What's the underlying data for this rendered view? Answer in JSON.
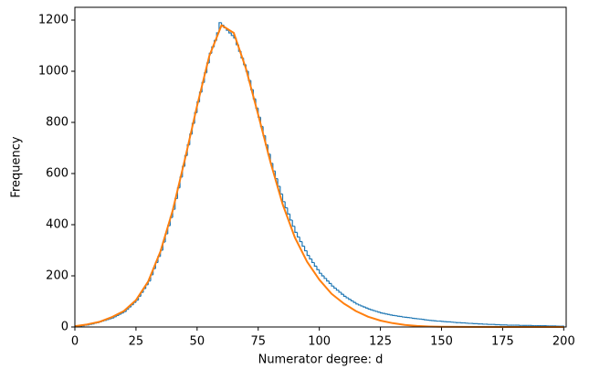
{
  "chart_data": {
    "type": "histogram",
    "xlabel": "Numerator degree: d",
    "ylabel": "Frequency",
    "xlim": [
      0,
      201
    ],
    "ylim": [
      0,
      1250
    ],
    "xticks": [
      0,
      25,
      50,
      75,
      100,
      125,
      150,
      175,
      200
    ],
    "yticks": [
      0,
      200,
      400,
      600,
      800,
      1000,
      1200
    ],
    "color": "#1f77b4",
    "bins": [
      0,
      1,
      2,
      3,
      4,
      5,
      6,
      7,
      8,
      9,
      10,
      11,
      12,
      13,
      14,
      15,
      16,
      17,
      18,
      19,
      20,
      21,
      22,
      23,
      24,
      25,
      26,
      27,
      28,
      29,
      30,
      31,
      32,
      33,
      34,
      35,
      36,
      37,
      38,
      39,
      40,
      41,
      42,
      43,
      44,
      45,
      46,
      47,
      48,
      49,
      50,
      51,
      52,
      53,
      54,
      55,
      56,
      57,
      58,
      59,
      60,
      61,
      62,
      63,
      64,
      65,
      66,
      67,
      68,
      69,
      70,
      71,
      72,
      73,
      74,
      75,
      76,
      77,
      78,
      79,
      80,
      81,
      82,
      83,
      84,
      85,
      86,
      87,
      88,
      89,
      90,
      91,
      92,
      93,
      94,
      95,
      96,
      97,
      98,
      99,
      100,
      101,
      102,
      103,
      104,
      105,
      106,
      107,
      108,
      109,
      110,
      111,
      112,
      113,
      114,
      115,
      116,
      117,
      118,
      119,
      120,
      121,
      122,
      123,
      124,
      125,
      126,
      127,
      128,
      129,
      130,
      131,
      132,
      133,
      134,
      135,
      136,
      137,
      138,
      139,
      140,
      141,
      142,
      143,
      144,
      145,
      146,
      147,
      148,
      149,
      150,
      151,
      152,
      153,
      154,
      155,
      156,
      157,
      158,
      159,
      160,
      161,
      162,
      163,
      164,
      165,
      166,
      167,
      168,
      169,
      170,
      171,
      172,
      173,
      174,
      175,
      176,
      177,
      178,
      179,
      180,
      181,
      182,
      183,
      184,
      185,
      186,
      187,
      188,
      189,
      190,
      191,
      192,
      193,
      194,
      195,
      196,
      197,
      198,
      199,
      200
    ],
    "values": [
      2,
      3,
      4,
      5,
      7,
      8,
      10,
      12,
      15,
      17,
      20,
      23,
      26,
      29,
      32,
      35,
      40,
      45,
      50,
      55,
      60,
      69,
      78,
      87,
      96,
      105,
      120,
      135,
      150,
      165,
      180,
      204,
      228,
      252,
      276,
      300,
      332,
      364,
      396,
      428,
      460,
      502,
      544,
      586,
      628,
      670,
      712,
      754,
      796,
      838,
      880,
      918,
      956,
      994,
      1032,
      1070,
      1095,
      1120,
      1150,
      1190,
      1180,
      1170,
      1160,
      1150,
      1140,
      1130,
      1104,
      1078,
      1052,
      1026,
      1000,
      964,
      928,
      892,
      856,
      820,
      784,
      748,
      712,
      676,
      640,
      610,
      580,
      550,
      520,
      490,
      466,
      442,
      418,
      394,
      370,
      352,
      334,
      316,
      298,
      280,
      266,
      252,
      238,
      224,
      210,
      200,
      190,
      180,
      170,
      160,
      152,
      144,
      136,
      128,
      120,
      114,
      108,
      102,
      96,
      90,
      86,
      82,
      78,
      74,
      70,
      67,
      64,
      61,
      58,
      55,
      53,
      51,
      49,
      47,
      45,
      44,
      42,
      41,
      39,
      38,
      37,
      36,
      34,
      33,
      32,
      31,
      30,
      28,
      27,
      26,
      25,
      24,
      23,
      23,
      22,
      21,
      20,
      20,
      19,
      18,
      17,
      17,
      16,
      16,
      15,
      14,
      14,
      13,
      13,
      12,
      12,
      11,
      11,
      10,
      10,
      10,
      9,
      9,
      8,
      8,
      8,
      7,
      7,
      7,
      7,
      7,
      6,
      6,
      6,
      6,
      6,
      5,
      5,
      5,
      5,
      5,
      5,
      4,
      4,
      4,
      4,
      3,
      3,
      3
    ],
    "curve": {
      "color": "#ff7f0e",
      "x": [
        0,
        5,
        10,
        15,
        20,
        25,
        30,
        35,
        40,
        45,
        50,
        55,
        60,
        65,
        70,
        75,
        80,
        85,
        90,
        95,
        100,
        105,
        110,
        115,
        120,
        125,
        130,
        135,
        140,
        145,
        150,
        175,
        200
      ],
      "values": [
        3,
        10,
        20,
        38,
        62,
        105,
        178,
        295,
        455,
        655,
        865,
        1060,
        1180,
        1150,
        1010,
        830,
        645,
        480,
        350,
        255,
        185,
        130,
        92,
        62,
        40,
        25,
        15,
        8,
        4,
        2,
        1,
        0,
        0
      ]
    }
  }
}
